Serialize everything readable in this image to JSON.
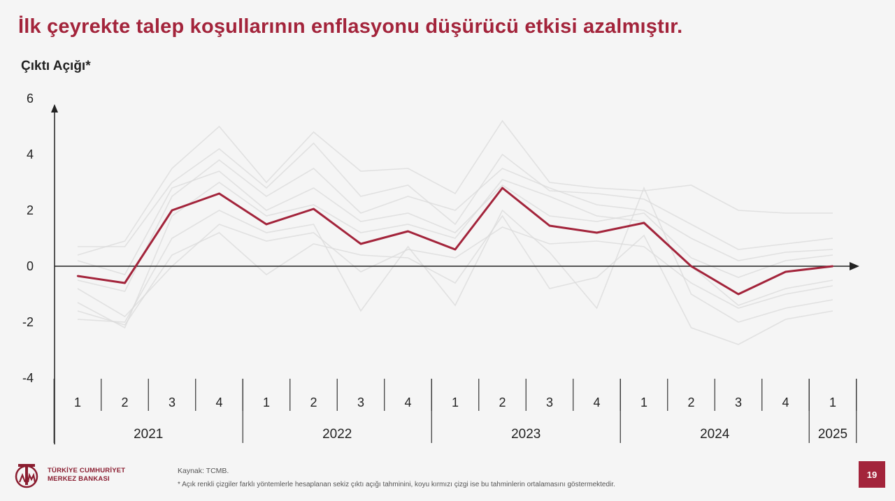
{
  "title": "İlk çeyrekte talep koşullarının enflasyonu düşürücü etkisi azalmıştır.",
  "chart_title": "Çıktı Açığı*",
  "colors": {
    "accent": "#a3243b",
    "background": "#f5f5f5",
    "axis": "#222222",
    "faint": "#d9d9d9"
  },
  "footer": {
    "logo_line1": "TÜRKİYE CUMHURİYET",
    "logo_line2": "MERKEZ BANKASI",
    "logo_icon": "tcmb-logo-icon",
    "source": "Kaynak: TCMB.",
    "note": "* Açık renkli çizgiler farklı yöntemlerle hesaplanan sekiz çıktı açığı tahminini, koyu kırmızı çizgi ise bu tahminlerin ortalamasını göstermektedir.",
    "page_number": "19"
  },
  "chart_data": {
    "type": "line",
    "title": "Çıktı Açığı*",
    "ylim": [
      -4,
      6
    ],
    "yticks": [
      "-4",
      "-2",
      "0",
      "2",
      "4",
      "6"
    ],
    "ytick_values": [
      -4,
      -2,
      0,
      2,
      4,
      6
    ],
    "quarters": [
      "1",
      "2",
      "3",
      "4",
      "1",
      "2",
      "3",
      "4",
      "1",
      "2",
      "3",
      "4",
      "1",
      "2",
      "3",
      "4",
      "1"
    ],
    "years": [
      {
        "label": "2021",
        "quarters": 4
      },
      {
        "label": "2022",
        "quarters": 4
      },
      {
        "label": "2023",
        "quarters": 4
      },
      {
        "label": "2024",
        "quarters": 4
      },
      {
        "label": "2025",
        "quarters": 1
      }
    ],
    "grid": false,
    "series": [
      {
        "role": "average",
        "color": "#a3243b",
        "values": [
          -0.35,
          -0.6,
          2.0,
          2.6,
          1.5,
          2.05,
          0.8,
          1.25,
          0.6,
          2.8,
          1.45,
          1.2,
          1.55,
          0.0,
          -1.0,
          -0.2,
          0.0
        ]
      },
      {
        "role": "estimate",
        "values": [
          0.4,
          0.9,
          3.5,
          5.0,
          3.0,
          4.8,
          3.4,
          3.5,
          2.6,
          5.2,
          3.0,
          2.8,
          2.7,
          2.9,
          2.0,
          1.9,
          1.9
        ]
      },
      {
        "role": "estimate",
        "values": [
          0.7,
          0.7,
          3.0,
          4.2,
          2.8,
          4.4,
          2.5,
          2.9,
          1.5,
          4.0,
          2.7,
          2.6,
          2.4,
          1.5,
          0.6,
          0.8,
          1.0
        ]
      },
      {
        "role": "estimate",
        "values": [
          -0.5,
          -0.9,
          2.5,
          3.8,
          2.5,
          3.5,
          1.9,
          2.5,
          2.0,
          3.5,
          2.8,
          2.2,
          2.0,
          1.0,
          0.2,
          0.5,
          0.6
        ]
      },
      {
        "role": "estimate",
        "values": [
          -1.3,
          -2.2,
          1.8,
          3.0,
          1.8,
          2.2,
          1.2,
          1.5,
          1.0,
          3.1,
          2.5,
          1.8,
          1.6,
          0.0,
          -1.4,
          -0.8,
          -0.5
        ]
      },
      {
        "role": "estimate",
        "values": [
          -1.9,
          -2.0,
          1.0,
          2.0,
          1.2,
          1.5,
          -1.6,
          0.7,
          -1.4,
          2.0,
          0.5,
          -1.5,
          2.8,
          -1.0,
          -2.0,
          -1.5,
          -1.2
        ]
      },
      {
        "role": "estimate",
        "values": [
          -1.6,
          -2.1,
          0.4,
          1.2,
          -0.3,
          0.8,
          0.4,
          0.3,
          -0.6,
          1.8,
          -0.8,
          -0.4,
          1.1,
          -2.2,
          -2.8,
          -1.9,
          -1.6
        ]
      },
      {
        "role": "estimate",
        "values": [
          -0.8,
          -1.8,
          0.0,
          1.5,
          0.9,
          1.2,
          -0.2,
          0.6,
          0.3,
          1.4,
          0.8,
          0.9,
          0.7,
          -0.6,
          -1.5,
          -1.0,
          -0.7
        ]
      },
      {
        "role": "estimate",
        "values": [
          0.2,
          -0.3,
          2.8,
          3.4,
          2.0,
          2.8,
          1.6,
          1.9,
          1.2,
          2.9,
          1.8,
          1.6,
          1.9,
          0.3,
          -0.4,
          0.2,
          0.4
        ]
      }
    ]
  }
}
